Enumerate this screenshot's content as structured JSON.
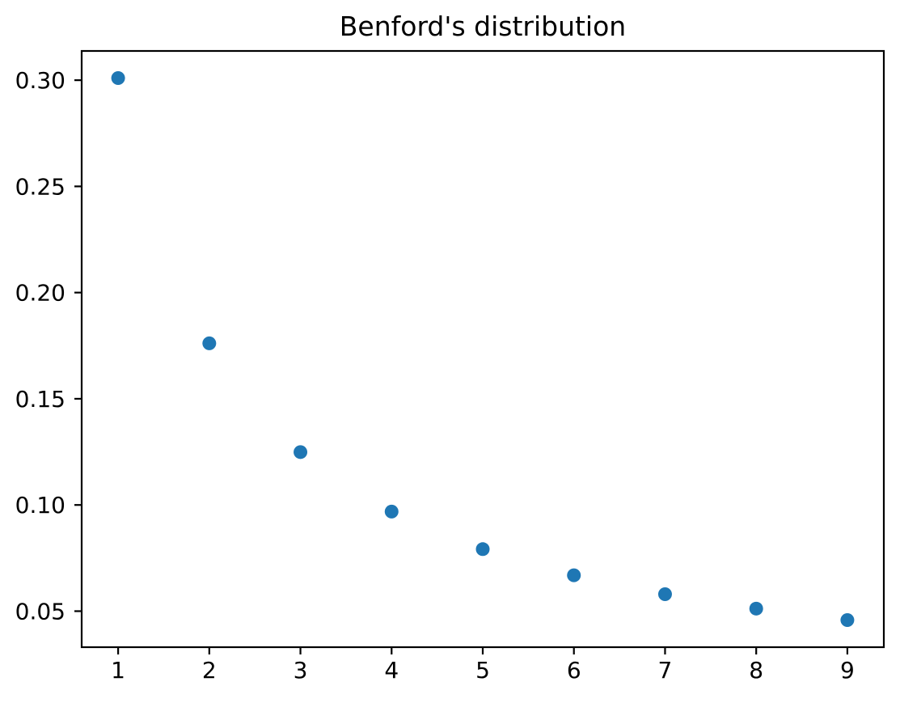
{
  "chart_data": {
    "type": "scatter",
    "title": "Benford's distribution",
    "xlabel": "",
    "ylabel": "",
    "x": [
      1,
      2,
      3,
      4,
      5,
      6,
      7,
      8,
      9
    ],
    "y": [
      0.301,
      0.1761,
      0.1249,
      0.0969,
      0.0792,
      0.0669,
      0.058,
      0.0512,
      0.0458
    ],
    "xlim": [
      0.6,
      9.4
    ],
    "ylim": [
      0.03304,
      0.31376
    ],
    "xticks": [
      1,
      2,
      3,
      4,
      5,
      6,
      7,
      8,
      9
    ],
    "xtick_labels": [
      "1",
      "2",
      "3",
      "4",
      "5",
      "6",
      "7",
      "8",
      "9"
    ],
    "yticks": [
      0.05,
      0.1,
      0.15,
      0.2,
      0.25,
      0.3
    ],
    "ytick_labels": [
      "0.05",
      "0.10",
      "0.15",
      "0.20",
      "0.25",
      "0.30"
    ],
    "grid": false,
    "legend": null,
    "marker": {
      "shape": "circle",
      "color": "#1f77b4",
      "radius_px": 8.5
    },
    "axes_color": "#000000",
    "background_color": "#ffffff"
  }
}
